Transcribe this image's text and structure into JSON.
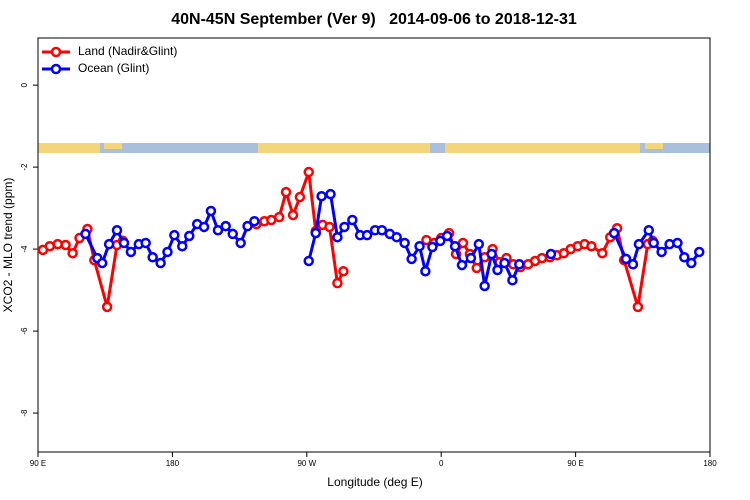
{
  "chart_data": {
    "type": "line",
    "title": "40N-45N September (Ver 9)   2014-09-06 to 2018-12-31",
    "xlabel": "Longitude (deg E)",
    "ylabel": "XCO2 - MLO trend (ppm)",
    "xlim": [
      90,
      540
    ],
    "xticks": [
      {
        "value": 90,
        "label": "90 E"
      },
      180,
      {
        "value": 270,
        "label": "90 W"
      },
      {
        "value": 360,
        "label": "0"
      },
      {
        "value": 450,
        "label": "90 E"
      },
      {
        "value": 540,
        "label": "180"
      }
    ],
    "ylim": [
      -8.95,
      1.15
    ],
    "yticks": [
      0,
      -2,
      -4,
      -6,
      -8
    ],
    "legend": "top-left",
    "series": [
      {
        "name": "Land (Nadir&Glint)",
        "color": "#ff0000",
        "x": [
          93.3,
          97.9,
          103.2,
          108.5,
          113.2,
          117.8,
          123.1,
          127.7,
          136.3,
          142.9,
          146.9,
          null,
          236.3,
          241.6,
          246.2,
          251.5,
          256.1,
          260.8,
          265.4,
          271.3,
          276.0,
          280.6,
          285.2,
          290.5,
          294.5,
          null,
          350.1,
          355.4,
          360.0,
          365.3,
          369.9,
          374.6,
          379.2,
          383.8,
          389.1,
          394.4,
          399.1,
          403.7,
          408.3,
          413.0,
          418.2,
          422.9,
          427.5,
          432.8,
          437.5,
          442.1,
          446.7,
          451.4,
          456.0,
          460.6,
          467.9,
          473.2,
          477.8,
          482.5,
          491.7,
          498.3,
          501.6
        ],
        "values": [
          -4.02,
          -3.93,
          -3.88,
          -3.9,
          -4.1,
          -3.73,
          -3.51,
          -4.27,
          -5.41,
          -3.9,
          -3.8,
          null,
          -3.39,
          -3.32,
          -3.29,
          -3.22,
          -2.61,
          -3.17,
          -2.73,
          -2.12,
          -3.56,
          -3.41,
          -3.46,
          -4.83,
          -4.54,
          null,
          -3.78,
          -3.85,
          -3.73,
          -3.61,
          -4.12,
          -3.85,
          -4.12,
          -4.46,
          -4.2,
          -4.0,
          -4.32,
          -4.22,
          -4.37,
          -4.44,
          -4.37,
          -4.29,
          -4.22,
          -4.2,
          -4.15,
          -4.1,
          -4.0,
          -3.93,
          -3.88,
          -3.93,
          -4.1,
          -3.71,
          -3.49,
          -4.27,
          -5.41,
          -3.88,
          -3.8
        ]
      },
      {
        "name": "Ocean (Glint)",
        "color": "#0000ff",
        "x": [
          121.8,
          129.7,
          133.0,
          137.6,
          142.9,
          147.6,
          152.2,
          157.5,
          162.1,
          166.8,
          172.1,
          176.7,
          181.3,
          186.6,
          191.3,
          196.6,
          201.2,
          205.8,
          210.5,
          215.7,
          220.4,
          225.7,
          230.3,
          234.9,
          null,
          271.3,
          276.0,
          279.9,
          285.9,
          290.5,
          295.2,
          300.5,
          305.7,
          310.4,
          315.7,
          320.3,
          325.6,
          330.2,
          335.5,
          340.2,
          345.5,
          349.4,
          354.1,
          359.4,
          364.0,
          369.3,
          373.9,
          379.9,
          385.2,
          389.1,
          393.8,
          397.7,
          402.4,
          407.7,
          412.3,
          null,
          433.5,
          null,
          475.8,
          483.8,
          488.4,
          492.4,
          499.0,
          502.3,
          507.6,
          512.9,
          518.2,
          522.8,
          527.5,
          532.8
        ],
        "values": [
          -3.63,
          -4.22,
          -4.34,
          -3.88,
          -3.54,
          -3.85,
          -4.07,
          -3.88,
          -3.85,
          -4.2,
          -4.34,
          -4.07,
          -3.66,
          -3.93,
          -3.68,
          -3.39,
          -3.46,
          -3.07,
          -3.54,
          -3.44,
          -3.63,
          -3.85,
          -3.44,
          -3.32,
          null,
          -4.29,
          -3.61,
          -2.71,
          -2.66,
          -3.71,
          -3.46,
          -3.29,
          -3.66,
          -3.66,
          -3.54,
          -3.54,
          -3.63,
          -3.71,
          -3.85,
          -4.24,
          -3.93,
          -4.54,
          -3.95,
          -3.8,
          -3.68,
          -3.93,
          -4.39,
          -4.22,
          -3.88,
          -4.9,
          -4.12,
          -4.51,
          -4.34,
          -4.76,
          -4.37,
          null,
          -4.12,
          null,
          -3.61,
          -4.24,
          -4.37,
          -3.88,
          -3.54,
          -3.85,
          -4.07,
          -3.88,
          -3.85,
          -4.2,
          -4.34,
          -4.07
        ]
      }
    ]
  }
}
